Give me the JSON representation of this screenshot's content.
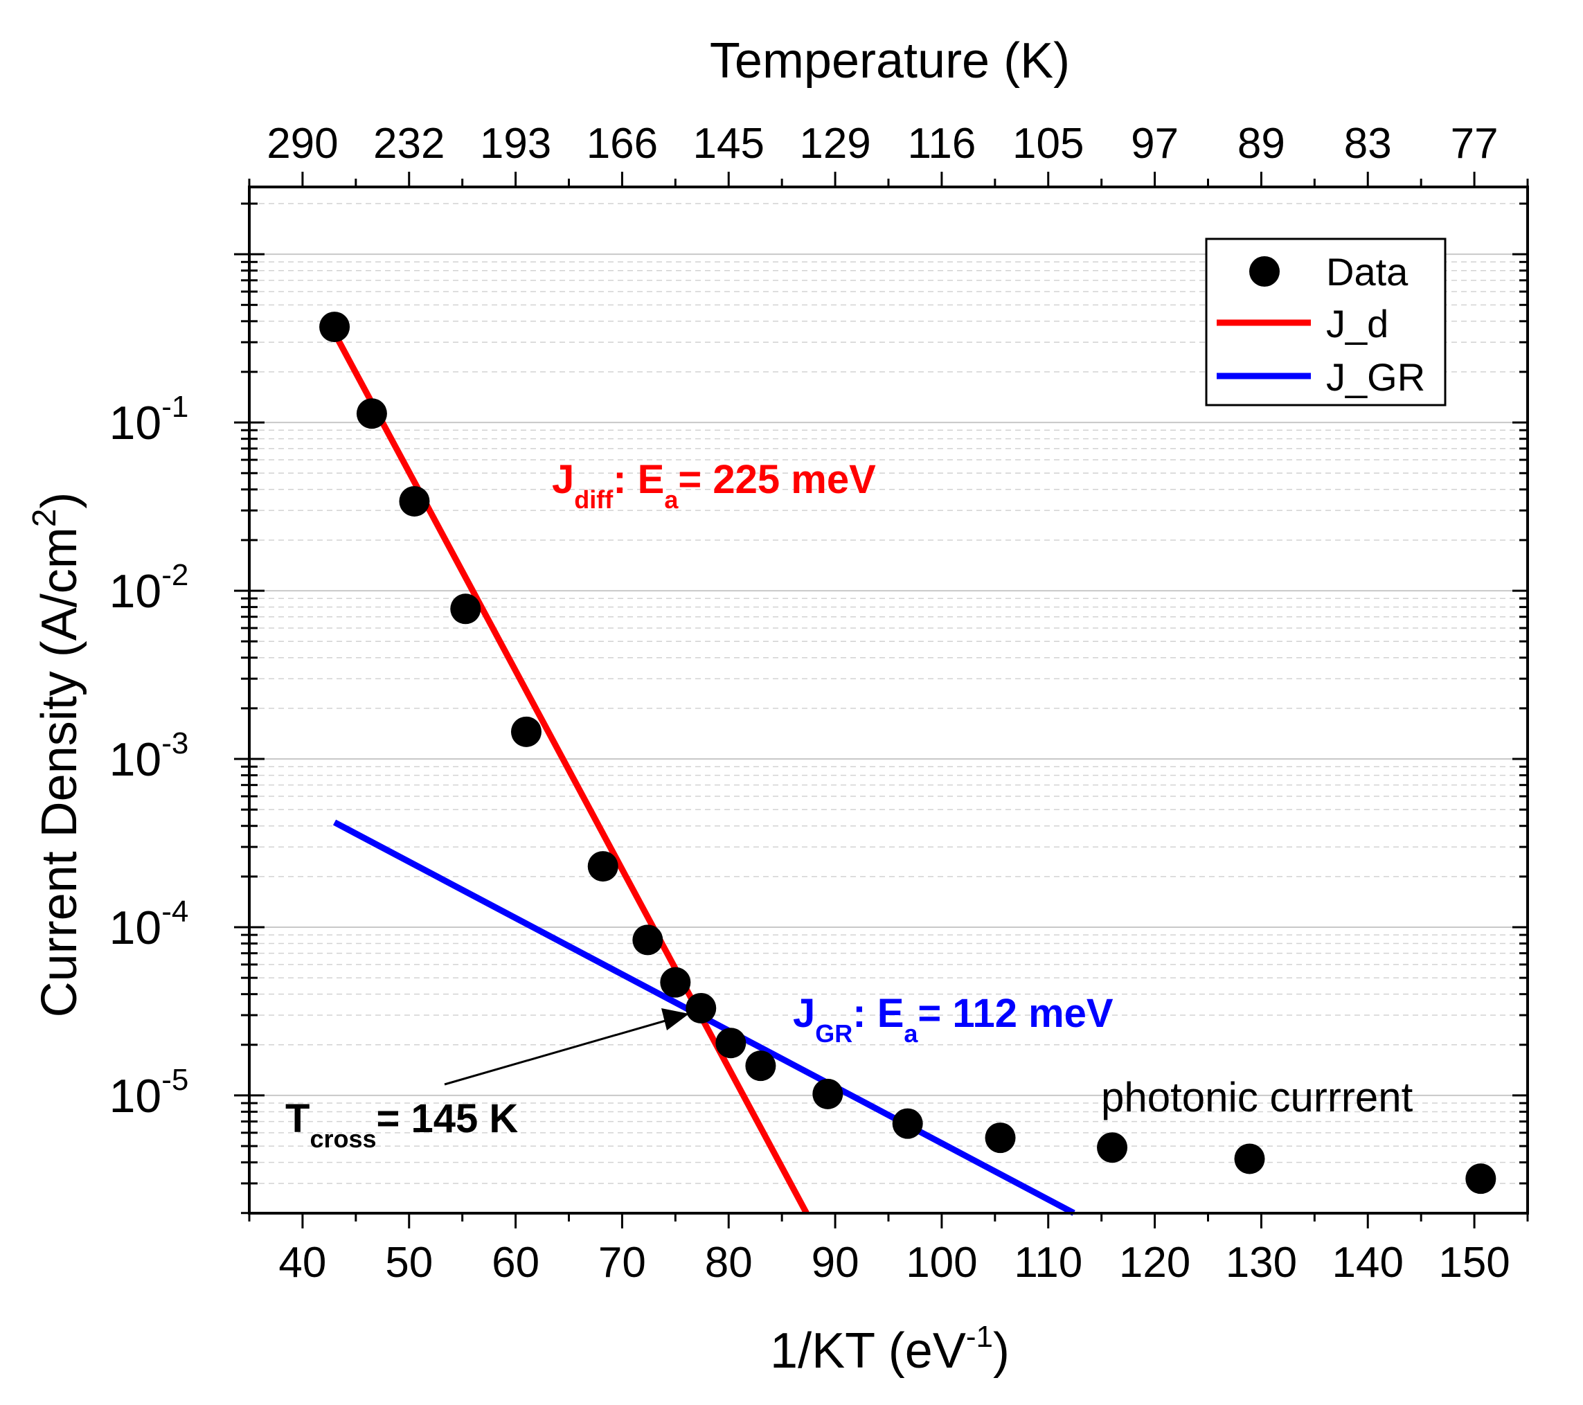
{
  "chart_data": {
    "type": "scatter",
    "title": "",
    "xlabel": "1/KT (eV",
    "xlabel_sup": "-1",
    "xlabel_end": ")",
    "ylabel": "Current Density (A/cm",
    "ylabel_sup": "2",
    "ylabel_end": ")",
    "top_axis_label": "Temperature (K)",
    "xlim": [
      35,
      155
    ],
    "ylim_log10": [
      -5.7,
      0.4
    ],
    "x_ticks": [
      40,
      50,
      60,
      70,
      80,
      90,
      100,
      110,
      120,
      130,
      140,
      150
    ],
    "y_ticks": [
      {
        "exp": -1,
        "base": "10",
        "sup": "-1"
      },
      {
        "exp": -2,
        "base": "10",
        "sup": "-2"
      },
      {
        "exp": -3,
        "base": "10",
        "sup": "-3"
      },
      {
        "exp": -4,
        "base": "10",
        "sup": "-4"
      },
      {
        "exp": -5,
        "base": "10",
        "sup": "-5"
      }
    ],
    "top_ticks": [
      {
        "x": 40,
        "label": "290"
      },
      {
        "x": 50,
        "label": "232"
      },
      {
        "x": 60,
        "label": "193"
      },
      {
        "x": 70,
        "label": "166"
      },
      {
        "x": 80,
        "label": "145"
      },
      {
        "x": 90,
        "label": "129"
      },
      {
        "x": 100,
        "label": "116"
      },
      {
        "x": 110,
        "label": "105"
      },
      {
        "x": 120,
        "label": "97"
      },
      {
        "x": 130,
        "label": "89"
      },
      {
        "x": 140,
        "label": "83"
      },
      {
        "x": 150,
        "label": "77"
      }
    ],
    "series": [
      {
        "name": "Data",
        "kind": "scatter",
        "color": "#000000",
        "x": [
          43.0,
          46.5,
          50.5,
          55.3,
          61.0,
          68.2,
          72.4,
          75.0,
          77.4,
          80.2,
          83.0,
          89.3,
          96.8,
          105.5,
          116.0,
          128.9,
          150.6
        ],
        "y": [
          0.37,
          0.113,
          0.034,
          0.0078,
          0.00145,
          0.00023,
          8.4e-05,
          4.7e-05,
          3.3e-05,
          2.05e-05,
          1.5e-05,
          1.02e-05,
          6.8e-06,
          5.6e-06,
          4.9e-06,
          4.2e-06,
          3.2e-06
        ]
      },
      {
        "name": "J_d",
        "kind": "line",
        "color": "#ff0000",
        "x": [
          43.0,
          87.3
        ],
        "y": [
          0.34,
          2e-06
        ]
      },
      {
        "name": "J_GR",
        "kind": "line",
        "color": "#0000ff",
        "x": [
          43.0,
          112.4
        ],
        "y": [
          0.00042,
          2e-06
        ]
      }
    ],
    "legend": {
      "position": "top-right",
      "entries": [
        {
          "label": "Data",
          "color": "#000000",
          "marker": "circle"
        },
        {
          "label": "J_d",
          "color": "#ff0000",
          "marker": "line"
        },
        {
          "label": "J_GR",
          "color": "#0000ff",
          "marker": "line"
        }
      ]
    },
    "annotations": {
      "jdiff": {
        "main": "J",
        "sub": "diff",
        "mid": ": E",
        "sub2": "a",
        "end": "= 225 meV",
        "color": "#ff0000"
      },
      "jgr": {
        "main": "J",
        "sub": "GR",
        "mid": ": E",
        "sub2": "a",
        "end": "= 112 meV",
        "color": "#0000ff"
      },
      "tcross": {
        "main": "T",
        "sub": "cross",
        "end": "= 145 K",
        "color": "#000000"
      },
      "photonic": {
        "text": "photonic currrent",
        "color": "#000000"
      }
    }
  }
}
